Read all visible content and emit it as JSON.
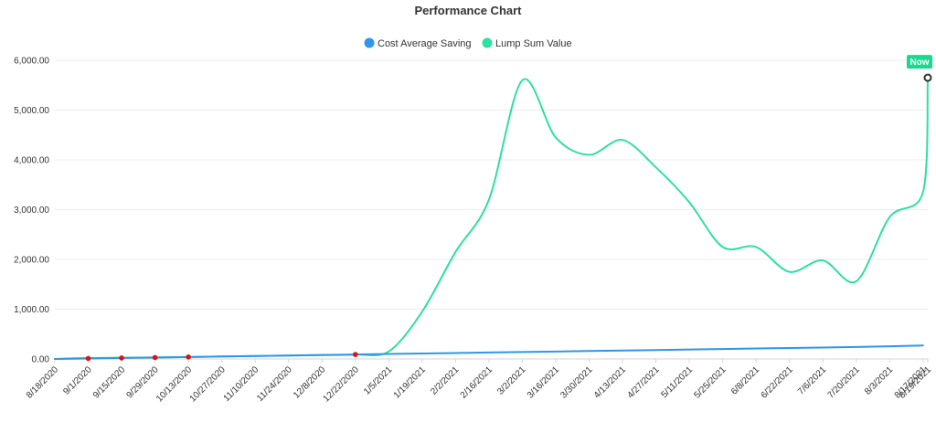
{
  "chart_data": {
    "type": "line",
    "title": "Performance Chart",
    "xlabel": "",
    "ylabel": "",
    "x_tick_labels": [
      "8/18/2020",
      "9/1/2020",
      "9/15/2020",
      "9/29/2020",
      "10/13/2020",
      "10/27/2020",
      "11/10/2020",
      "11/24/2020",
      "12/8/2020",
      "12/22/2020",
      "1/5/2021",
      "1/19/2021",
      "2/2/2021",
      "2/16/2021",
      "3/2/2021",
      "3/16/2021",
      "3/30/2021",
      "4/13/2021",
      "4/27/2021",
      "5/11/2021",
      "5/25/2021",
      "6/8/2021",
      "6/22/2021",
      "7/6/2021",
      "7/20/2021",
      "8/3/2021",
      "8/17/2021",
      "8/19/2021"
    ],
    "y_tick_values": [
      0,
      1000,
      2000,
      3000,
      4000,
      5000,
      6000
    ],
    "y_tick_labels": [
      "0.00",
      "1,000.00",
      "2,000.00",
      "3,000.00",
      "4,000.00",
      "5,000.00",
      "6,000.00"
    ],
    "ylim": [
      0,
      6000
    ],
    "grid": "horizontal",
    "legend_position": "top",
    "series": [
      {
        "name": "Cost Average Saving",
        "color": "#2f96e8",
        "smooth": false,
        "points": [
          [
            "8/18/2020",
            0
          ],
          [
            "9/1/2020",
            10
          ],
          [
            "9/15/2020",
            20
          ],
          [
            "9/29/2020",
            30
          ],
          [
            "10/13/2020",
            40
          ],
          [
            "10/27/2020",
            50
          ],
          [
            "11/10/2020",
            60
          ],
          [
            "11/24/2020",
            70
          ],
          [
            "12/8/2020",
            80
          ],
          [
            "12/22/2020",
            90
          ],
          [
            "1/5/2021",
            100
          ],
          [
            "1/19/2021",
            110
          ],
          [
            "2/2/2021",
            120
          ],
          [
            "2/16/2021",
            130
          ],
          [
            "3/2/2021",
            140
          ],
          [
            "3/16/2021",
            150
          ],
          [
            "3/30/2021",
            160
          ],
          [
            "4/13/2021",
            170
          ],
          [
            "4/27/2021",
            180
          ],
          [
            "5/11/2021",
            190
          ],
          [
            "5/25/2021",
            200
          ],
          [
            "6/8/2021",
            210
          ],
          [
            "6/22/2021",
            220
          ],
          [
            "7/6/2021",
            230
          ],
          [
            "7/20/2021",
            240
          ],
          [
            "8/3/2021",
            255
          ],
          [
            "8/17/2021",
            270
          ]
        ]
      },
      {
        "name": "Lump Sum Value",
        "color": "#2ee0a1",
        "smooth": true,
        "points": [
          [
            "8/18/2020",
            0
          ],
          [
            "9/1/2020",
            20
          ],
          [
            "9/15/2020",
            25
          ],
          [
            "9/29/2020",
            30
          ],
          [
            "10/13/2020",
            38
          ],
          [
            "10/27/2020",
            50
          ],
          [
            "11/10/2020",
            60
          ],
          [
            "11/24/2020",
            68
          ],
          [
            "12/8/2020",
            78
          ],
          [
            "12/22/2020",
            90
          ],
          [
            "1/5/2021",
            150
          ],
          [
            "1/19/2021",
            950
          ],
          [
            "2/2/2021",
            2150
          ],
          [
            "2/16/2021",
            3200
          ],
          [
            "3/2/2021",
            5600
          ],
          [
            "3/16/2021",
            4450
          ],
          [
            "3/30/2021",
            4100
          ],
          [
            "4/13/2021",
            4400
          ],
          [
            "4/27/2021",
            3850
          ],
          [
            "5/11/2021",
            3150
          ],
          [
            "5/25/2021",
            2250
          ],
          [
            "6/8/2021",
            2250
          ],
          [
            "6/22/2021",
            1750
          ],
          [
            "7/6/2021",
            1980
          ],
          [
            "7/20/2021",
            1560
          ],
          [
            "8/3/2021",
            2850
          ],
          [
            "8/17/2021",
            3350
          ],
          [
            "8/19/2021",
            5650
          ]
        ]
      }
    ],
    "markers": {
      "color": "#e01010",
      "series": "Cost Average Saving",
      "x": [
        "9/1/2020",
        "9/15/2020",
        "9/29/2020",
        "10/13/2020",
        "12/22/2020"
      ]
    },
    "annotation": {
      "label": "Now",
      "color": "#19d98c",
      "series": "Lump Sum Value",
      "x": "8/19/2021",
      "y": 5650
    }
  }
}
